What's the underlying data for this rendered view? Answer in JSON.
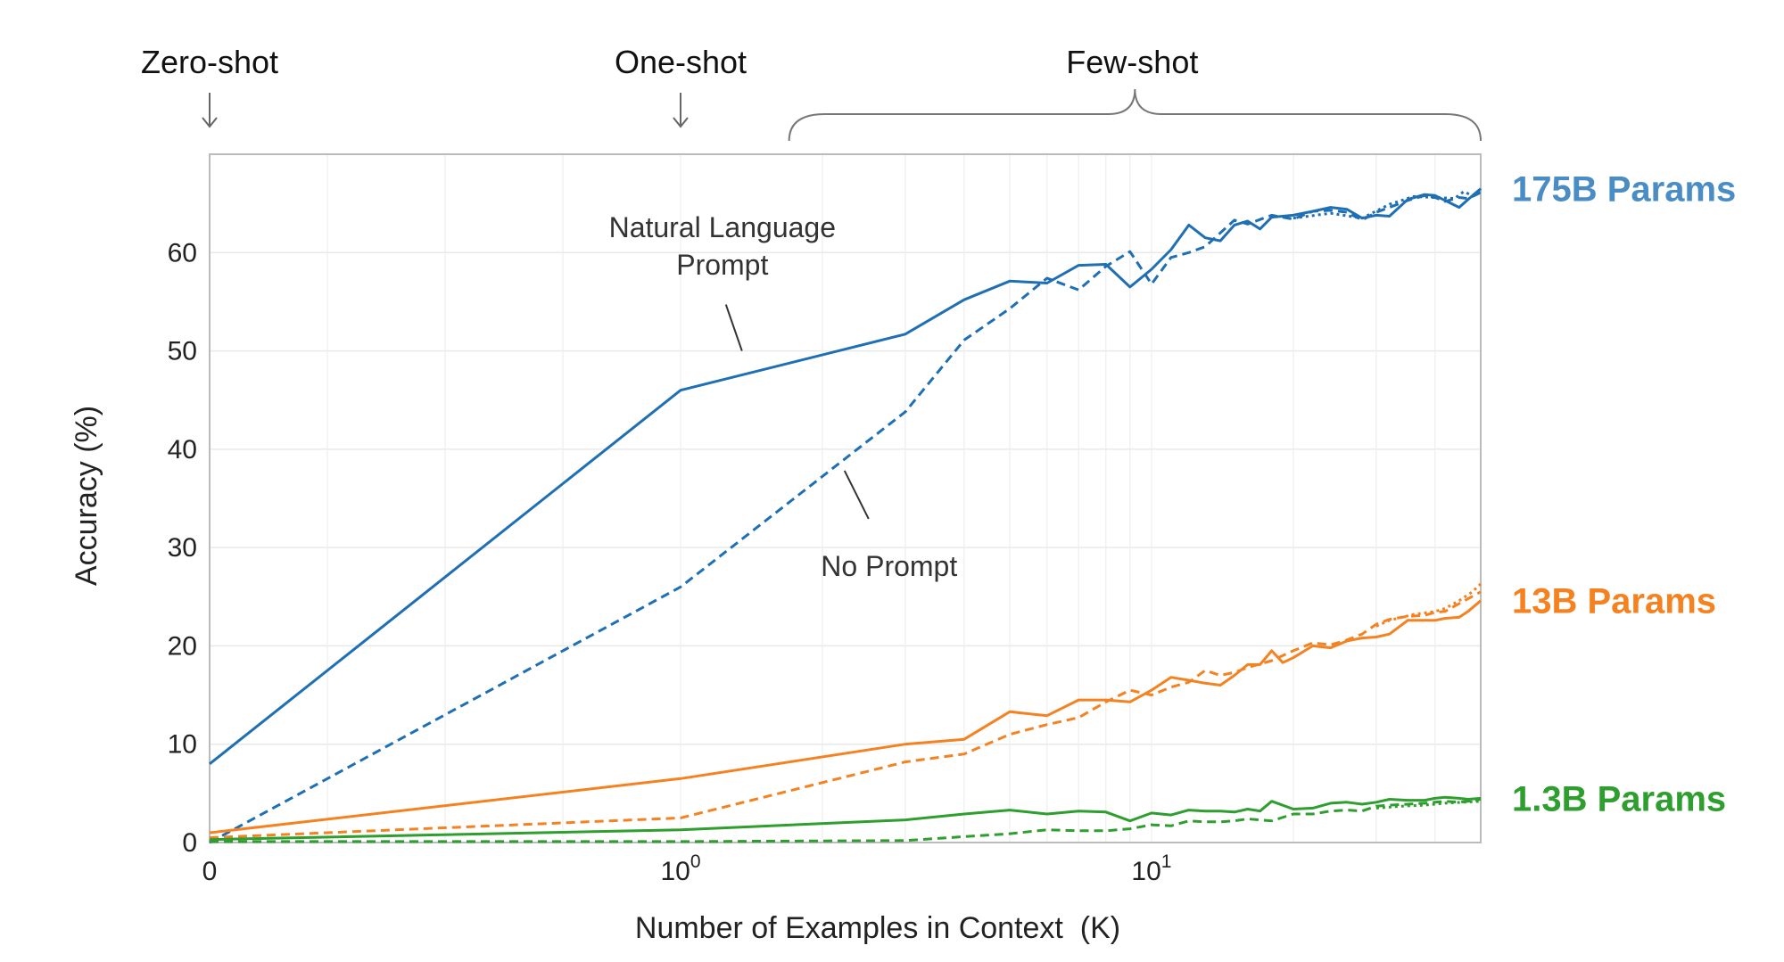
{
  "chart_data": {
    "type": "line",
    "title": "",
    "xlabel": "Number of Examples in Context  (K)",
    "ylabel": "Accuracy (%)",
    "x_scale": "symlog",
    "xlim": [
      0,
      50
    ],
    "ylim": [
      0,
      70
    ],
    "grid": true,
    "yticks": [
      0,
      10,
      20,
      30,
      40,
      50,
      60
    ],
    "xticks": [
      {
        "value": 0,
        "base": "0",
        "exp": ""
      },
      {
        "value": 1,
        "base": "10",
        "exp": "0"
      },
      {
        "value": 10,
        "base": "10",
        "exp": "1"
      }
    ],
    "regimes": [
      {
        "label": "Zero-shot",
        "x": 0,
        "marker": "arrow"
      },
      {
        "label": "One-shot",
        "x": 1,
        "marker": "arrow"
      },
      {
        "label": "Few-shot",
        "from": 1.7,
        "to": 50,
        "marker": "brace"
      }
    ],
    "annotations": [
      {
        "lines": [
          "Natural Language",
          "Prompt"
        ],
        "target": {
          "x": 1.35,
          "y": 50
        }
      },
      {
        "lines": [
          "No Prompt"
        ],
        "target": {
          "x": 2.2,
          "y": 38
        }
      }
    ],
    "groups": [
      {
        "name": "175B Params",
        "color": "#1f6fb4",
        "label_color": "#4a8cc4",
        "series": [
          {
            "style": "solid",
            "points": [
              [
                0,
                8
              ],
              [
                1,
                46
              ],
              [
                3,
                51.7
              ],
              [
                4,
                55.2
              ],
              [
                5,
                57.1
              ],
              [
                6,
                56.9
              ],
              [
                7,
                58.7
              ],
              [
                8,
                58.8
              ],
              [
                9,
                56.5
              ],
              [
                10,
                58.3
              ],
              [
                11,
                60.3
              ],
              [
                12,
                62.8
              ],
              [
                13,
                61.5
              ],
              [
                14,
                61.2
              ],
              [
                15,
                62.8
              ],
              [
                16,
                63.2
              ],
              [
                17,
                62.4
              ],
              [
                18,
                63.6
              ],
              [
                20,
                63.8
              ],
              [
                22,
                64.2
              ],
              [
                24,
                64.6
              ],
              [
                26,
                64.4
              ],
              [
                28,
                63.5
              ],
              [
                30,
                63.8
              ],
              [
                32,
                63.7
              ],
              [
                35,
                65.4
              ],
              [
                38,
                65.9
              ],
              [
                40,
                65.8
              ],
              [
                42,
                65.3
              ],
              [
                45,
                64.6
              ],
              [
                47,
                65.4
              ],
              [
                50,
                66.5
              ]
            ]
          },
          {
            "style": "dashed",
            "points": [
              [
                0,
                0
              ],
              [
                1,
                26
              ],
              [
                3,
                43.8
              ],
              [
                4,
                51.1
              ],
              [
                5,
                54.3
              ],
              [
                6,
                57.4
              ],
              [
                7,
                56.2
              ],
              [
                8,
                58.6
              ],
              [
                9,
                60.1
              ],
              [
                10,
                56.8
              ],
              [
                11,
                59.5
              ],
              [
                12,
                60
              ],
              [
                13,
                60.6
              ],
              [
                14,
                62
              ],
              [
                15,
                63.3
              ],
              [
                16,
                62.9
              ],
              [
                18,
                63.8
              ],
              [
                20,
                63.4
              ],
              [
                22,
                64.2
              ],
              [
                24,
                64.3
              ],
              [
                26,
                64.1
              ],
              [
                28,
                63.3
              ],
              [
                30,
                64.1
              ],
              [
                32,
                64.6
              ],
              [
                35,
                65.3
              ],
              [
                38,
                65.8
              ],
              [
                40,
                65.6
              ],
              [
                42,
                65.2
              ],
              [
                45,
                65.6
              ],
              [
                47,
                65.5
              ],
              [
                50,
                66.1
              ]
            ]
          },
          {
            "style": "dotted",
            "points": [
              [
                20,
                63.5
              ],
              [
                24,
                64.0
              ],
              [
                28,
                63.5
              ],
              [
                32,
                64.9
              ],
              [
                36,
                65.7
              ],
              [
                40,
                65.6
              ],
              [
                44,
                65.5
              ],
              [
                46,
                66.2
              ],
              [
                48,
                65.8
              ],
              [
                50,
                66.2
              ]
            ]
          }
        ]
      },
      {
        "name": "13B Params",
        "color": "#f58221",
        "label_color": "#f58221",
        "series": [
          {
            "style": "solid",
            "points": [
              [
                0,
                1
              ],
              [
                1,
                6.5
              ],
              [
                3,
                10
              ],
              [
                4,
                10.5
              ],
              [
                5,
                13.3
              ],
              [
                6,
                12.9
              ],
              [
                7,
                14.5
              ],
              [
                8,
                14.5
              ],
              [
                9,
                14.3
              ],
              [
                10,
                15.5
              ],
              [
                11,
                16.8
              ],
              [
                12,
                16.5
              ],
              [
                13,
                16.2
              ],
              [
                14,
                16
              ],
              [
                15,
                17
              ],
              [
                16,
                18.1
              ],
              [
                17,
                18.1
              ],
              [
                18,
                19.5
              ],
              [
                19,
                18.3
              ],
              [
                20,
                18.8
              ],
              [
                22,
                20
              ],
              [
                24,
                19.8
              ],
              [
                26,
                20.5
              ],
              [
                28,
                20.8
              ],
              [
                30,
                20.9
              ],
              [
                32,
                21.2
              ],
              [
                35,
                22.6
              ],
              [
                38,
                22.6
              ],
              [
                40,
                22.6
              ],
              [
                42,
                22.8
              ],
              [
                45,
                22.9
              ],
              [
                47,
                23.5
              ],
              [
                50,
                24.6
              ]
            ]
          },
          {
            "style": "dashed",
            "points": [
              [
                0,
                0.5
              ],
              [
                1,
                2.5
              ],
              [
                3,
                8.2
              ],
              [
                4,
                9
              ],
              [
                5,
                11
              ],
              [
                6,
                12
              ],
              [
                7,
                12.7
              ],
              [
                8,
                14.3
              ],
              [
                9,
                15.5
              ],
              [
                10,
                15
              ],
              [
                11,
                15.8
              ],
              [
                12,
                16.3
              ],
              [
                13,
                17.5
              ],
              [
                14,
                17
              ],
              [
                15,
                17.3
              ],
              [
                16,
                17.8
              ],
              [
                18,
                18.5
              ],
              [
                20,
                19.5
              ],
              [
                22,
                20.3
              ],
              [
                24,
                20.1
              ],
              [
                26,
                20.6
              ],
              [
                28,
                21.2
              ],
              [
                30,
                22.2
              ],
              [
                32,
                22.7
              ],
              [
                35,
                23
              ],
              [
                38,
                23.1
              ],
              [
                40,
                23.4
              ],
              [
                42,
                23.5
              ],
              [
                45,
                24.3
              ],
              [
                50,
                25.5
              ]
            ]
          },
          {
            "style": "dotted",
            "points": [
              [
                30,
                22.0
              ],
              [
                32,
                22.6
              ],
              [
                36,
                23.2
              ],
              [
                40,
                23.5
              ],
              [
                42,
                23.8
              ],
              [
                45,
                24.6
              ],
              [
                48,
                25.5
              ],
              [
                50,
                26.3
              ]
            ]
          }
        ]
      },
      {
        "name": "1.3B Params",
        "color": "#2e9e2e",
        "label_color": "#2e9e2e",
        "series": [
          {
            "style": "solid",
            "points": [
              [
                0,
                0.3
              ],
              [
                1,
                1.3
              ],
              [
                3,
                2.3
              ],
              [
                4,
                2.9
              ],
              [
                5,
                3.3
              ],
              [
                6,
                2.9
              ],
              [
                7,
                3.2
              ],
              [
                8,
                3.1
              ],
              [
                9,
                2.2
              ],
              [
                10,
                3
              ],
              [
                11,
                2.8
              ],
              [
                12,
                3.3
              ],
              [
                13,
                3.2
              ],
              [
                14,
                3.2
              ],
              [
                15,
                3.1
              ],
              [
                16,
                3.4
              ],
              [
                17,
                3.2
              ],
              [
                18,
                4.2
              ],
              [
                20,
                3.4
              ],
              [
                22,
                3.5
              ],
              [
                24,
                4
              ],
              [
                26,
                4.1
              ],
              [
                28,
                3.9
              ],
              [
                30,
                4.1
              ],
              [
                32,
                4.4
              ],
              [
                35,
                4.3
              ],
              [
                38,
                4.3
              ],
              [
                40,
                4.5
              ],
              [
                42,
                4.6
              ],
              [
                45,
                4.5
              ],
              [
                47,
                4.4
              ],
              [
                50,
                4.5
              ]
            ]
          },
          {
            "style": "dashed",
            "points": [
              [
                0,
                0.1
              ],
              [
                1,
                0.1
              ],
              [
                3,
                0.2
              ],
              [
                4,
                0.6
              ],
              [
                5,
                0.9
              ],
              [
                6,
                1.3
              ],
              [
                7,
                1.2
              ],
              [
                8,
                1.2
              ],
              [
                9,
                1.4
              ],
              [
                10,
                1.8
              ],
              [
                11,
                1.7
              ],
              [
                12,
                2.2
              ],
              [
                13,
                2.1
              ],
              [
                14,
                2.1
              ],
              [
                15,
                2.2
              ],
              [
                16,
                2.4
              ],
              [
                18,
                2.2
              ],
              [
                20,
                2.9
              ],
              [
                22,
                2.9
              ],
              [
                24,
                3.2
              ],
              [
                26,
                3.3
              ],
              [
                28,
                3.2
              ],
              [
                30,
                3.7
              ],
              [
                32,
                3.8
              ],
              [
                35,
                3.9
              ],
              [
                38,
                4
              ],
              [
                40,
                4.1
              ],
              [
                42,
                4.2
              ],
              [
                45,
                4.1
              ],
              [
                47,
                4.2
              ],
              [
                50,
                4.4
              ]
            ]
          },
          {
            "style": "dotted",
            "points": [
              [
                30,
                3.5
              ],
              [
                34,
                3.7
              ],
              [
                38,
                3.8
              ],
              [
                42,
                4.0
              ],
              [
                46,
                4.1
              ],
              [
                50,
                4.2
              ]
            ]
          }
        ]
      }
    ]
  }
}
